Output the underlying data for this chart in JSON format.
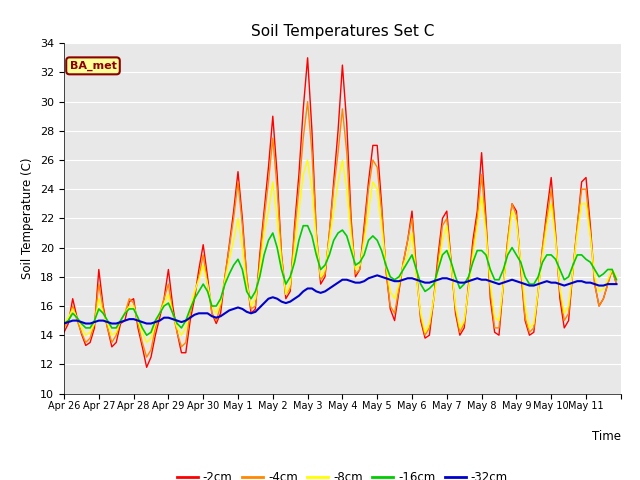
{
  "title": "Soil Temperatures Set C",
  "xlabel": "Time",
  "ylabel": "Soil Temperature (C)",
  "ylim": [
    10,
    34
  ],
  "yticks": [
    10,
    12,
    14,
    16,
    18,
    20,
    22,
    24,
    26,
    28,
    30,
    32,
    34
  ],
  "annotation": "BA_met",
  "annotation_color": "#8B0000",
  "annotation_bg": "#FFFF99",
  "annotation_border": "#8B0000",
  "plot_bg": "#E8E8E8",
  "fig_bg": "#FFFFFF",
  "grid_color": "#FFFFFF",
  "series_order": [
    "-2cm",
    "-4cm",
    "-8cm",
    "-16cm",
    "-32cm"
  ],
  "series": {
    "-2cm": {
      "color": "#FF0000",
      "lw": 1.0
    },
    "-4cm": {
      "color": "#FF8800",
      "lw": 1.0
    },
    "-8cm": {
      "color": "#FFFF00",
      "lw": 1.0
    },
    "-16cm": {
      "color": "#00CC00",
      "lw": 1.2
    },
    "-32cm": {
      "color": "#0000CC",
      "lw": 1.5
    }
  },
  "x_labels": [
    "Apr 26",
    "Apr 27",
    "Apr 28",
    "Apr 29",
    "Apr 30",
    "May 1",
    "May 2",
    "May 3",
    "May 4",
    "May 5",
    "May 6",
    "May 7",
    "May 8",
    "May 9",
    "May 10",
    "May 11"
  ],
  "n_days": 16,
  "n_per_day": 8,
  "data": {
    "-2cm": [
      14.2,
      14.8,
      16.5,
      15.2,
      14.1,
      13.3,
      13.5,
      14.5,
      18.5,
      16.0,
      14.5,
      13.2,
      13.5,
      14.8,
      15.0,
      16.3,
      16.5,
      14.5,
      13.2,
      11.8,
      12.5,
      14.0,
      15.2,
      16.5,
      18.5,
      16.0,
      14.2,
      12.8,
      12.8,
      15.0,
      16.5,
      18.5,
      20.2,
      18.0,
      15.5,
      14.8,
      15.5,
      18.0,
      20.2,
      22.5,
      25.2,
      22.0,
      18.0,
      15.5,
      15.8,
      19.5,
      22.5,
      25.5,
      29.0,
      25.0,
      19.5,
      16.5,
      17.0,
      21.5,
      25.0,
      29.5,
      33.0,
      28.0,
      21.0,
      17.5,
      18.0,
      21.0,
      24.5,
      28.0,
      32.5,
      28.5,
      22.0,
      18.0,
      18.5,
      21.5,
      24.5,
      27.0,
      27.0,
      23.0,
      18.5,
      15.8,
      15.0,
      17.0,
      19.0,
      20.5,
      22.5,
      18.5,
      15.0,
      13.8,
      14.0,
      16.5,
      19.5,
      22.0,
      22.5,
      19.0,
      15.5,
      14.0,
      14.5,
      17.5,
      20.5,
      22.5,
      26.5,
      22.0,
      16.5,
      14.2,
      14.0,
      17.5,
      20.5,
      23.0,
      22.5,
      18.5,
      15.0,
      14.0,
      14.2,
      17.0,
      20.0,
      22.5,
      24.8,
      21.0,
      16.5,
      14.5,
      15.0,
      18.5,
      21.5,
      24.5,
      24.8,
      21.5,
      17.5,
      16.0,
      16.5,
      17.5,
      18.5,
      17.5
    ],
    "-4cm": [
      14.5,
      15.0,
      16.0,
      15.0,
      14.2,
      13.5,
      13.8,
      14.8,
      17.5,
      15.8,
      14.5,
      13.5,
      14.0,
      15.0,
      15.5,
      16.5,
      16.2,
      14.8,
      13.5,
      12.5,
      13.0,
      14.5,
      15.5,
      16.5,
      17.5,
      15.5,
      14.2,
      13.2,
      13.5,
      15.5,
      16.8,
      18.0,
      19.5,
      17.5,
      15.5,
      15.0,
      16.0,
      18.0,
      20.0,
      22.0,
      24.5,
      21.5,
      18.0,
      15.8,
      16.0,
      19.0,
      22.0,
      24.5,
      27.5,
      24.0,
      19.5,
      16.8,
      17.2,
      21.0,
      24.0,
      27.5,
      30.0,
      26.5,
      21.0,
      17.8,
      18.2,
      21.0,
      24.0,
      26.5,
      29.5,
      26.5,
      21.5,
      18.2,
      18.5,
      21.0,
      24.0,
      26.0,
      25.5,
      22.5,
      18.5,
      16.0,
      15.5,
      17.2,
      19.0,
      20.5,
      22.0,
      18.2,
      15.2,
      14.0,
      14.5,
      16.5,
      19.0,
      21.5,
      22.0,
      18.8,
      15.8,
      14.2,
      14.8,
      17.2,
      20.0,
      22.0,
      25.0,
      21.5,
      17.0,
      14.5,
      14.5,
      17.5,
      20.5,
      23.0,
      22.2,
      18.8,
      15.2,
      14.2,
      14.5,
      17.0,
      20.0,
      22.0,
      24.0,
      20.8,
      17.0,
      15.0,
      15.5,
      18.5,
      21.5,
      24.0,
      24.0,
      21.0,
      17.5,
      16.0,
      16.5,
      17.5,
      18.5,
      17.5
    ],
    "-8cm": [
      14.8,
      15.2,
      15.8,
      15.2,
      14.5,
      14.0,
      14.2,
      14.8,
      16.5,
      15.5,
      14.8,
      14.0,
      14.2,
      15.0,
      15.5,
      16.0,
      16.0,
      15.0,
      14.2,
      13.5,
      13.8,
      14.8,
      15.5,
      16.2,
      16.8,
      15.5,
      14.5,
      14.0,
      14.5,
      15.8,
      17.0,
      17.8,
      18.8,
      17.5,
      16.0,
      15.5,
      16.2,
      17.8,
      19.2,
      20.5,
      22.0,
      20.0,
      17.5,
      16.0,
      16.5,
      18.5,
      21.0,
      22.5,
      24.5,
      22.0,
      19.0,
      16.8,
      17.5,
      20.0,
      22.5,
      25.0,
      26.0,
      24.0,
      20.5,
      18.0,
      18.5,
      20.5,
      22.5,
      24.5,
      26.0,
      24.0,
      20.8,
      18.5,
      18.8,
      20.5,
      22.5,
      24.5,
      24.0,
      21.5,
      18.8,
      17.0,
      16.5,
      17.5,
      18.8,
      19.5,
      21.0,
      18.0,
      15.5,
      14.2,
      14.8,
      16.5,
      18.5,
      20.5,
      21.5,
      18.8,
      16.0,
      14.5,
      15.0,
      17.2,
      19.5,
      21.5,
      23.5,
      21.0,
      17.5,
      15.2,
      15.0,
      17.5,
      20.0,
      22.5,
      21.8,
      19.0,
      16.0,
      14.5,
      14.8,
      17.0,
      19.5,
      21.5,
      23.0,
      20.5,
      17.2,
      15.5,
      16.0,
      18.5,
      21.0,
      23.0,
      23.0,
      20.8,
      18.0,
      17.0,
      17.2,
      17.8,
      18.5,
      18.0
    ],
    "-16cm": [
      14.8,
      15.0,
      15.5,
      15.2,
      14.8,
      14.5,
      14.5,
      15.0,
      15.8,
      15.5,
      15.0,
      14.5,
      14.5,
      15.0,
      15.5,
      15.8,
      15.8,
      15.2,
      14.5,
      14.0,
      14.2,
      15.0,
      15.5,
      16.0,
      16.2,
      15.5,
      14.8,
      14.5,
      15.0,
      15.8,
      16.5,
      17.0,
      17.5,
      17.0,
      16.0,
      16.0,
      16.5,
      17.5,
      18.2,
      18.8,
      19.2,
      18.5,
      17.0,
      16.5,
      17.0,
      18.0,
      19.5,
      20.5,
      21.0,
      20.0,
      18.5,
      17.5,
      18.0,
      19.0,
      20.5,
      21.5,
      21.5,
      20.8,
      19.5,
      18.5,
      18.8,
      19.5,
      20.5,
      21.0,
      21.2,
      20.8,
      19.8,
      18.8,
      19.0,
      19.5,
      20.5,
      20.8,
      20.5,
      19.8,
      18.8,
      18.0,
      17.8,
      18.0,
      18.5,
      19.0,
      19.5,
      18.5,
      17.5,
      17.0,
      17.2,
      17.5,
      18.5,
      19.5,
      19.8,
      19.0,
      18.0,
      17.2,
      17.5,
      18.0,
      19.0,
      19.8,
      19.8,
      19.5,
      18.5,
      17.8,
      17.8,
      18.5,
      19.5,
      20.0,
      19.5,
      19.0,
      18.0,
      17.5,
      17.5,
      18.0,
      19.0,
      19.5,
      19.5,
      19.2,
      18.5,
      17.8,
      18.0,
      18.8,
      19.5,
      19.5,
      19.2,
      19.0,
      18.5,
      18.0,
      18.2,
      18.5,
      18.5,
      17.8
    ],
    "-32cm": [
      14.8,
      14.9,
      15.0,
      15.0,
      14.9,
      14.8,
      14.8,
      14.9,
      15.0,
      15.0,
      14.9,
      14.8,
      14.8,
      14.9,
      15.0,
      15.1,
      15.1,
      15.0,
      14.9,
      14.8,
      14.8,
      14.9,
      15.0,
      15.2,
      15.2,
      15.1,
      15.0,
      14.9,
      15.0,
      15.2,
      15.4,
      15.5,
      15.5,
      15.5,
      15.3,
      15.2,
      15.3,
      15.5,
      15.7,
      15.8,
      15.9,
      15.8,
      15.6,
      15.5,
      15.6,
      15.9,
      16.2,
      16.5,
      16.6,
      16.5,
      16.3,
      16.2,
      16.3,
      16.5,
      16.7,
      17.0,
      17.2,
      17.2,
      17.0,
      16.9,
      17.0,
      17.2,
      17.4,
      17.6,
      17.8,
      17.8,
      17.7,
      17.6,
      17.6,
      17.7,
      17.9,
      18.0,
      18.1,
      18.0,
      17.9,
      17.8,
      17.7,
      17.7,
      17.8,
      17.9,
      17.9,
      17.8,
      17.7,
      17.6,
      17.6,
      17.7,
      17.8,
      17.9,
      17.9,
      17.8,
      17.7,
      17.6,
      17.6,
      17.7,
      17.8,
      17.9,
      17.8,
      17.8,
      17.7,
      17.6,
      17.5,
      17.6,
      17.7,
      17.8,
      17.7,
      17.6,
      17.5,
      17.4,
      17.4,
      17.5,
      17.6,
      17.7,
      17.6,
      17.6,
      17.5,
      17.4,
      17.5,
      17.6,
      17.7,
      17.7,
      17.6,
      17.6,
      17.5,
      17.4,
      17.4,
      17.5,
      17.5,
      17.5
    ]
  }
}
